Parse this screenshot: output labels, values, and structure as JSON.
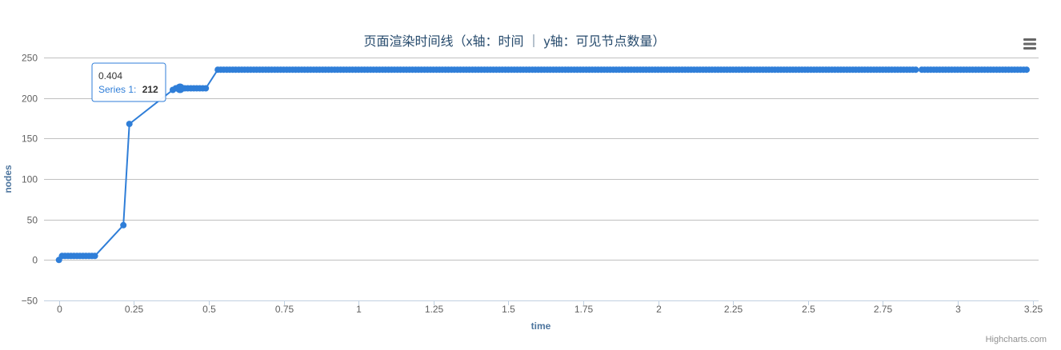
{
  "chart_data": {
    "type": "line",
    "title": "页面渲染时间线（x轴：时间 ｜ y轴：可见节点数量）",
    "xlabel": "time",
    "ylabel": "nodes",
    "xlim": [
      -0.05,
      3.27
    ],
    "ylim": [
      -50,
      250
    ],
    "x_ticks": [
      "0",
      "0.25",
      "0.5",
      "0.75",
      "1",
      "1.25",
      "1.5",
      "1.75",
      "2",
      "2.25",
      "2.5",
      "2.75",
      "3",
      "3.25"
    ],
    "x_tick_values": [
      0,
      0.25,
      0.5,
      0.75,
      1,
      1.25,
      1.5,
      1.75,
      2,
      2.25,
      2.5,
      2.75,
      3,
      3.25
    ],
    "y_ticks": [
      "−50",
      "0",
      "50",
      "100",
      "150",
      "200",
      "250"
    ],
    "y_tick_values": [
      -50,
      0,
      50,
      100,
      150,
      200,
      250
    ],
    "grid": "horizontal",
    "series": [
      {
        "name": "Series 1",
        "color": "#2f7ed8",
        "segments": [
          [
            [
              0,
              0
            ],
            [
              0.01,
              5
            ],
            [
              0.02,
              5
            ],
            [
              0.03,
              5
            ],
            [
              0.04,
              5
            ],
            [
              0.05,
              5
            ],
            [
              0.06,
              5
            ],
            [
              0.07,
              5
            ],
            [
              0.09,
              5
            ],
            [
              0.1,
              5
            ],
            [
              0.11,
              5
            ],
            [
              0.12,
              5
            ],
            [
              0.215,
              43
            ],
            [
              0.235,
              168
            ],
            [
              0.38,
              210
            ],
            [
              0.39,
              212
            ],
            [
              0.4,
              212
            ],
            [
              0.404,
              212
            ],
            [
              0.41,
              212
            ],
            [
              0.42,
              212
            ],
            [
              0.43,
              212
            ],
            [
              0.44,
              212
            ],
            [
              0.45,
              212
            ],
            [
              0.46,
              212
            ],
            [
              0.47,
              212
            ],
            [
              0.48,
              212
            ],
            [
              0.49,
              212
            ],
            [
              0.53,
              235
            ],
            [
              2.86,
              235
            ]
          ],
          [
            [
              2.88,
              235
            ],
            [
              3.23,
              235
            ]
          ]
        ],
        "marker_step": 0.01
      }
    ],
    "tooltip": {
      "x_label": "0.404",
      "series_label": "Series 1:",
      "value_label": "212",
      "x": 0.404,
      "y": 212
    },
    "credits": "Highcharts.com"
  },
  "colors": {
    "series": "#2f7ed8",
    "axis_text": "#606060",
    "title_text": "#274b6d",
    "axis_title": "#4d759e",
    "grid": "#c0c0c0",
    "axis_line": "#c0d0e0",
    "tooltip_border": "#2f7ed8",
    "menu_icon": "#666666"
  },
  "icons": {
    "menu": "hamburger-menu-icon"
  }
}
